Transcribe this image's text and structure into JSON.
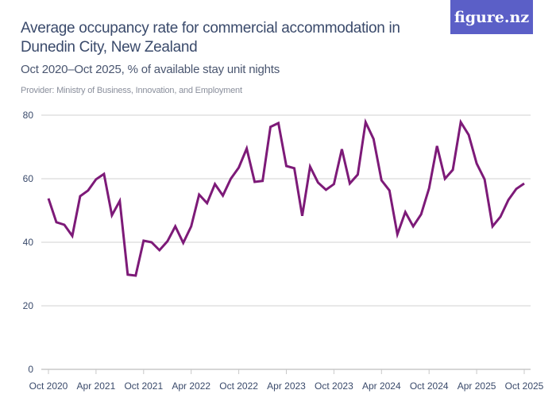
{
  "logo": "figure.nz",
  "chart_data": {
    "type": "line",
    "title": "Average occupancy rate for commercial accommodation in Dunedin City, New Zealand",
    "subtitle": "Oct 2020–Oct 2025, % of available stay unit nights",
    "provider": "Provider: Ministry of Business, Innovation, and Employment",
    "ylim": [
      0,
      80
    ],
    "yticks": [
      0,
      20,
      40,
      60,
      80
    ],
    "xticks": [
      "Oct 2020",
      "Apr 2021",
      "Oct 2021",
      "Apr 2022",
      "Oct 2022",
      "Apr 2023",
      "Oct 2023",
      "Apr 2024",
      "Oct 2024",
      "Apr 2025",
      "Oct 2025"
    ],
    "x_start": "Oct 2020",
    "x_end": "Oct 2025",
    "grid": true,
    "line_color": "#7d1a78",
    "values": [
      53.8,
      46.3,
      45.5,
      42,
      54.5,
      56.3,
      59.8,
      61.5,
      48.5,
      53,
      29.8,
      29.5,
      40.5,
      40,
      37.5,
      40.3,
      45,
      39.8,
      45,
      55,
      52.3,
      58.3,
      54.7,
      60,
      63.5,
      69.5,
      59,
      59.3,
      76.3,
      77.5,
      64,
      63.3,
      48.3,
      63.8,
      58.8,
      56.5,
      58.3,
      69.3,
      58.5,
      61.3,
      77.8,
      72.5,
      59.5,
      56.3,
      42.5,
      49.5,
      45,
      48.8,
      57,
      70.3,
      60,
      62.8,
      77.8,
      73.8,
      64.8,
      59.8,
      45,
      48,
      53.3,
      56.8,
      58.5
    ]
  }
}
